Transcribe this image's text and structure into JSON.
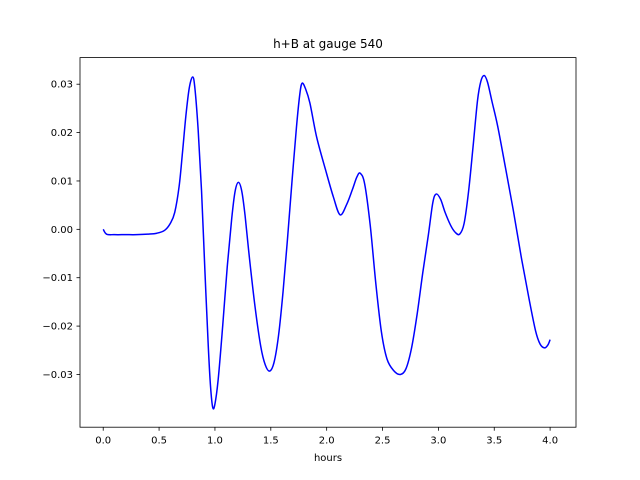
{
  "figure": {
    "title": "h+B at gauge 540",
    "xlabel": "hours",
    "background_color": "#ffffff",
    "line_color": "#0000ff",
    "spine_color": "#000000",
    "tick_color": "#000000"
  },
  "chart_data": {
    "type": "line",
    "title": "h+B at gauge 540",
    "xlabel": "hours",
    "ylabel": "",
    "grid": false,
    "legend_position": "none",
    "xlim": [
      -0.2078,
      4.2317
    ],
    "ylim": [
      -0.0409,
      0.0355
    ],
    "xticks": {
      "values": [
        0.0,
        0.5,
        1.0,
        1.5,
        2.0,
        2.5,
        3.0,
        3.5,
        4.0
      ],
      "labels": [
        "0.0",
        "0.5",
        "1.0",
        "1.5",
        "2.0",
        "2.5",
        "3.0",
        "3.5",
        "4.0"
      ]
    },
    "yticks": {
      "values": [
        -0.03,
        -0.02,
        -0.01,
        0.0,
        0.01,
        0.02,
        0.03
      ],
      "labels": [
        "−0.03",
        "−0.02",
        "−0.01",
        "0.00",
        "0.01",
        "0.02",
        "0.03"
      ]
    },
    "series": [
      {
        "name": "h+B",
        "color": "#0000ff",
        "linewidth": 1.5,
        "x": [
          0.0,
          0.03,
          0.1,
          0.2,
          0.3,
          0.4,
          0.48,
          0.55,
          0.6,
          0.64,
          0.68,
          0.71,
          0.74,
          0.77,
          0.8,
          0.82,
          0.85,
          0.88,
          0.91,
          0.94,
          0.96,
          0.98,
          1.0,
          1.03,
          1.07,
          1.11,
          1.15,
          1.18,
          1.21,
          1.24,
          1.27,
          1.31,
          1.36,
          1.41,
          1.45,
          1.49,
          1.53,
          1.57,
          1.61,
          1.65,
          1.69,
          1.73,
          1.76,
          1.78,
          1.81,
          1.85,
          1.91,
          1.99,
          2.06,
          2.12,
          2.18,
          2.23,
          2.27,
          2.3,
          2.34,
          2.39,
          2.44,
          2.49,
          2.54,
          2.6,
          2.66,
          2.71,
          2.76,
          2.81,
          2.86,
          2.91,
          2.95,
          2.98,
          3.02,
          3.06,
          3.11,
          3.15,
          3.19,
          3.23,
          3.27,
          3.31,
          3.35,
          3.38,
          3.41,
          3.44,
          3.48,
          3.53,
          3.6,
          3.67,
          3.74,
          3.81,
          3.87,
          3.91,
          3.95,
          3.98,
          4.0
        ],
        "y": [
          0.0,
          -0.001,
          -0.0011,
          -0.0011,
          -0.0011,
          -0.001,
          -0.0008,
          -0.0002,
          0.0012,
          0.0035,
          0.009,
          0.016,
          0.0235,
          0.0292,
          0.0315,
          0.0293,
          0.0205,
          0.008,
          -0.0085,
          -0.024,
          -0.0323,
          -0.0368,
          -0.0361,
          -0.0308,
          -0.0198,
          -0.0078,
          0.0022,
          0.0078,
          0.0097,
          0.0079,
          0.0028,
          -0.0062,
          -0.0162,
          -0.0242,
          -0.028,
          -0.0293,
          -0.0274,
          -0.0218,
          -0.0128,
          -0.0018,
          0.01,
          0.0212,
          0.028,
          0.0302,
          0.0291,
          0.0261,
          0.0191,
          0.0123,
          0.0067,
          0.003,
          0.0052,
          0.0082,
          0.0108,
          0.0116,
          0.0094,
          0.0008,
          -0.0112,
          -0.0212,
          -0.0268,
          -0.0292,
          -0.03,
          -0.0288,
          -0.0245,
          -0.0175,
          -0.009,
          -0.0012,
          0.0055,
          0.0073,
          0.0062,
          0.0035,
          0.0008,
          -0.0006,
          -0.001,
          0.0012,
          0.0078,
          0.017,
          0.0266,
          0.0306,
          0.0318,
          0.0304,
          0.0264,
          0.0214,
          0.0128,
          0.004,
          -0.0055,
          -0.0142,
          -0.021,
          -0.0237,
          -0.0245,
          -0.0239,
          -0.0228
        ]
      }
    ]
  }
}
